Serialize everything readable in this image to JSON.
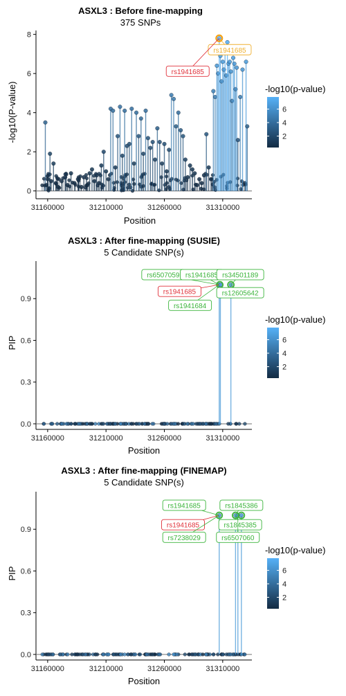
{
  "panels": [
    {
      "title": "ASXL3 : Before fine-mapping",
      "subtitle": "375 SNPs",
      "chart_data": {
        "type": "scatter",
        "xlabel": "Position",
        "ylabel": "-log10(P-value)",
        "xlim": [
          31150000,
          31335000
        ],
        "ylim": [
          -0.4,
          8.2
        ],
        "xticks": [
          31160000,
          31210000,
          31260000,
          31310000
        ],
        "xtick_labels": [
          "31160000",
          "31210000",
          "31260000",
          "31310000"
        ],
        "yticks": [
          0,
          2,
          4,
          6,
          8
        ],
        "ytick_labels": [
          "0",
          "2",
          "4",
          "6",
          "8"
        ],
        "points": [
          {
            "x": 31158000,
            "y": 3.5
          },
          {
            "x": 31159000,
            "y": 0.3
          },
          {
            "x": 31160000,
            "y": 0.6
          },
          {
            "x": 31162000,
            "y": 1.9
          },
          {
            "x": 31163000,
            "y": 0.5
          },
          {
            "x": 31165000,
            "y": 1.4
          },
          {
            "x": 31167000,
            "y": 0.4
          },
          {
            "x": 31169000,
            "y": 0.2
          },
          {
            "x": 31172000,
            "y": 0.5
          },
          {
            "x": 31175000,
            "y": 0.7
          },
          {
            "x": 31177000,
            "y": 0.3
          },
          {
            "x": 31180000,
            "y": 0.9
          },
          {
            "x": 31183000,
            "y": 0.4
          },
          {
            "x": 31186000,
            "y": 0.6
          },
          {
            "x": 31189000,
            "y": 0.2
          },
          {
            "x": 31191000,
            "y": 0.7
          },
          {
            "x": 31194000,
            "y": 0.3
          },
          {
            "x": 31196000,
            "y": 0.9
          },
          {
            "x": 31198000,
            "y": 1.1
          },
          {
            "x": 31200000,
            "y": 0.5
          },
          {
            "x": 31202000,
            "y": 0.8
          },
          {
            "x": 31204000,
            "y": 0.4
          },
          {
            "x": 31206000,
            "y": 1.3
          },
          {
            "x": 31208000,
            "y": 2.0
          },
          {
            "x": 31210000,
            "y": 1.0
          },
          {
            "x": 31212000,
            "y": 0.6
          },
          {
            "x": 31214000,
            "y": 4.2
          },
          {
            "x": 31216000,
            "y": 4.1
          },
          {
            "x": 31218000,
            "y": 1.2
          },
          {
            "x": 31220000,
            "y": 2.8
          },
          {
            "x": 31222000,
            "y": 4.3
          },
          {
            "x": 31224000,
            "y": 1.8
          },
          {
            "x": 31226000,
            "y": 4.1
          },
          {
            "x": 31228000,
            "y": 2.3
          },
          {
            "x": 31230000,
            "y": 2.4
          },
          {
            "x": 31232000,
            "y": 4.2
          },
          {
            "x": 31234000,
            "y": 1.4
          },
          {
            "x": 31236000,
            "y": 4.0
          },
          {
            "x": 31238000,
            "y": 2.8
          },
          {
            "x": 31240000,
            "y": 3.7
          },
          {
            "x": 31242000,
            "y": 1.9
          },
          {
            "x": 31244000,
            "y": 4.1
          },
          {
            "x": 31246000,
            "y": 2.7
          },
          {
            "x": 31248000,
            "y": 2.2
          },
          {
            "x": 31250000,
            "y": 2.5
          },
          {
            "x": 31252000,
            "y": 1.6
          },
          {
            "x": 31254000,
            "y": 3.2
          },
          {
            "x": 31256000,
            "y": 2.5
          },
          {
            "x": 31258000,
            "y": 1.4
          },
          {
            "x": 31260000,
            "y": 2.4
          },
          {
            "x": 31262000,
            "y": 1.0
          },
          {
            "x": 31264000,
            "y": 2.1
          },
          {
            "x": 31266000,
            "y": 4.9
          },
          {
            "x": 31268000,
            "y": 4.7
          },
          {
            "x": 31270000,
            "y": 3.3
          },
          {
            "x": 31272000,
            "y": 4.0
          },
          {
            "x": 31274000,
            "y": 3.1
          },
          {
            "x": 31276000,
            "y": 2.8
          },
          {
            "x": 31278000,
            "y": 1.6
          },
          {
            "x": 31280000,
            "y": 0.7
          },
          {
            "x": 31282000,
            "y": 1.3
          },
          {
            "x": 31284000,
            "y": 1.1
          },
          {
            "x": 31286000,
            "y": 0.9
          },
          {
            "x": 31288000,
            "y": 0.3
          },
          {
            "x": 31290000,
            "y": 0.6
          },
          {
            "x": 31292000,
            "y": 0.4
          },
          {
            "x": 31294000,
            "y": 0.8
          },
          {
            "x": 31296000,
            "y": 2.9
          },
          {
            "x": 31298000,
            "y": 1.2
          },
          {
            "x": 31300000,
            "y": 0.6
          },
          {
            "x": 31302000,
            "y": 5.1
          },
          {
            "x": 31303500,
            "y": 4.8
          },
          {
            "x": 31305000,
            "y": 6.4
          },
          {
            "x": 31306000,
            "y": 6.0
          },
          {
            "x": 31307000,
            "y": 7.8
          },
          {
            "x": 31308000,
            "y": 6.9
          },
          {
            "x": 31309000,
            "y": 5.6
          },
          {
            "x": 31310000,
            "y": 6.6
          },
          {
            "x": 31311000,
            "y": 6.2
          },
          {
            "x": 31312000,
            "y": 7.2
          },
          {
            "x": 31313000,
            "y": 5.9
          },
          {
            "x": 31314000,
            "y": 7.6
          },
          {
            "x": 31315000,
            "y": 6.5
          },
          {
            "x": 31316000,
            "y": 6.6
          },
          {
            "x": 31317000,
            "y": 6.1
          },
          {
            "x": 31318000,
            "y": 4.6
          },
          {
            "x": 31319000,
            "y": 6.8
          },
          {
            "x": 31320000,
            "y": 6.5
          },
          {
            "x": 31321000,
            "y": 5.2
          },
          {
            "x": 31322000,
            "y": 6.3
          },
          {
            "x": 31323000,
            "y": 2.6
          },
          {
            "x": 31325000,
            "y": 4.8
          },
          {
            "x": 31327000,
            "y": 6.2
          },
          {
            "x": 31329000,
            "y": 0.4
          },
          {
            "x": 31330000,
            "y": 6.6
          },
          {
            "x": 31331000,
            "y": 3.3
          }
        ],
        "floor_points": {
          "count": 120,
          "xmin": 31155000,
          "xmax": 31330000,
          "ymax": 0.9
        },
        "highlight": {
          "x": 31307000,
          "y": 7.8,
          "color": "#f59e0b"
        },
        "labels": [
          {
            "text": "rs1941685",
            "color": "#f0b030",
            "anchor_x": 31307000,
            "anchor_y": 7.8,
            "lx": 31316000,
            "ly": 7.2
          },
          {
            "text": "rs1941685",
            "color": "#e0313a",
            "anchor_x": 31307000,
            "anchor_y": 7.8,
            "lx": 31280000,
            "ly": 6.1
          }
        ]
      }
    },
    {
      "title": "ASXL3 : After fine-mapping (SUSIE)",
      "subtitle": "5 Candidate SNP(s)",
      "chart_data": {
        "type": "scatter",
        "xlabel": "Position",
        "ylabel": "PIP",
        "xlim": [
          31150000,
          31335000
        ],
        "ylim": [
          -0.04,
          1.17
        ],
        "xticks": [
          31160000,
          31210000,
          31260000,
          31310000
        ],
        "xtick_labels": [
          "31160000",
          "31210000",
          "31260000",
          "31310000"
        ],
        "yticks": [
          0,
          0.3,
          0.6,
          0.9
        ],
        "ytick_labels": [
          "0.0",
          "0.3",
          "0.6",
          "0.9"
        ],
        "points": [
          {
            "x": 31307000,
            "y": 1.0
          },
          {
            "x": 31308000,
            "y": 1.0
          },
          {
            "x": 31317000,
            "y": 1.0
          }
        ],
        "floor_points": {
          "count": 150,
          "xmin": 31155000,
          "xmax": 31330000,
          "ymax": 0.0
        },
        "highlight": null,
        "circles": [
          {
            "x": 31307500,
            "y": 1.0
          },
          {
            "x": 31317000,
            "y": 1.0
          }
        ],
        "labels": [
          {
            "text": "rs6507059",
            "color": "#3ab43a",
            "anchor_x": 31307000,
            "anchor_y": 1.0,
            "lx": 31259000,
            "ly": 1.07
          },
          {
            "text": "rs1941685",
            "color": "#3ab43a",
            "anchor_x": 31307000,
            "anchor_y": 1.0,
            "lx": 31292000,
            "ly": 1.07
          },
          {
            "text": "rs34501189",
            "color": "#3ab43a",
            "anchor_x": 31317000,
            "anchor_y": 1.0,
            "lx": 31325000,
            "ly": 1.07
          },
          {
            "text": "rs1941685",
            "color": "#e0313a",
            "anchor_x": 31307000,
            "anchor_y": 1.0,
            "lx": 31273000,
            "ly": 0.95
          },
          {
            "text": "rs12605642",
            "color": "#3ab43a",
            "anchor_x": 31317000,
            "anchor_y": 1.0,
            "lx": 31325000,
            "ly": 0.94
          },
          {
            "text": "rs1941684",
            "color": "#3ab43a",
            "anchor_x": 31307000,
            "anchor_y": 1.0,
            "lx": 31282000,
            "ly": 0.85
          }
        ]
      }
    },
    {
      "title": "ASXL3 : After fine-mapping (FINEMAP)",
      "subtitle": "5 Candidate SNP(s)",
      "chart_data": {
        "type": "scatter",
        "xlabel": "Position",
        "ylabel": "PIP",
        "xlim": [
          31150000,
          31335000
        ],
        "ylim": [
          -0.04,
          1.17
        ],
        "xticks": [
          31160000,
          31210000,
          31260000,
          31310000
        ],
        "xtick_labels": [
          "31160000",
          "31210000",
          "31260000",
          "31310000"
        ],
        "yticks": [
          0,
          0.3,
          0.6,
          0.9
        ],
        "ytick_labels": [
          "0.0",
          "0.3",
          "0.6",
          "0.9"
        ],
        "points": [
          {
            "x": 31307000,
            "y": 1.0
          },
          {
            "x": 31321000,
            "y": 1.0
          },
          {
            "x": 31323000,
            "y": 1.0
          },
          {
            "x": 31326000,
            "y": 1.0
          }
        ],
        "floor_points": {
          "count": 150,
          "xmin": 31155000,
          "xmax": 31330000,
          "ymax": 0.0
        },
        "highlight": null,
        "circles": [
          {
            "x": 31307000,
            "y": 1.0
          },
          {
            "x": 31321000,
            "y": 1.0
          },
          {
            "x": 31326000,
            "y": 1.0
          }
        ],
        "labels": [
          {
            "text": "rs1941685",
            "color": "#3ab43a",
            "anchor_x": 31307000,
            "anchor_y": 1.0,
            "lx": 31277000,
            "ly": 1.07
          },
          {
            "text": "rs1845386",
            "color": "#3ab43a",
            "anchor_x": 31321000,
            "anchor_y": 1.0,
            "lx": 31326000,
            "ly": 1.07
          },
          {
            "text": "rs1941685",
            "color": "#e0313a",
            "anchor_x": 31307000,
            "anchor_y": 1.0,
            "lx": 31276000,
            "ly": 0.93
          },
          {
            "text": "rs1845385",
            "color": "#3ab43a",
            "anchor_x": 31321000,
            "anchor_y": 1.0,
            "lx": 31325000,
            "ly": 0.93
          },
          {
            "text": "rs7238029",
            "color": "#3ab43a",
            "anchor_x": 31307000,
            "anchor_y": 1.0,
            "lx": 31277000,
            "ly": 0.84
          },
          {
            "text": "rs6507060",
            "color": "#3ab43a",
            "anchor_x": 31323000,
            "anchor_y": 1.0,
            "lx": 31323000,
            "ly": 0.84
          }
        ]
      }
    }
  ],
  "legend": {
    "title": "-log10(p-value)",
    "ticks": [
      2,
      4,
      6
    ],
    "tick_labels": [
      "2",
      "4",
      "6"
    ],
    "range": [
      0.3,
      7.8
    ],
    "color_low": "#132b43",
    "color_high": "#56b1f7"
  }
}
